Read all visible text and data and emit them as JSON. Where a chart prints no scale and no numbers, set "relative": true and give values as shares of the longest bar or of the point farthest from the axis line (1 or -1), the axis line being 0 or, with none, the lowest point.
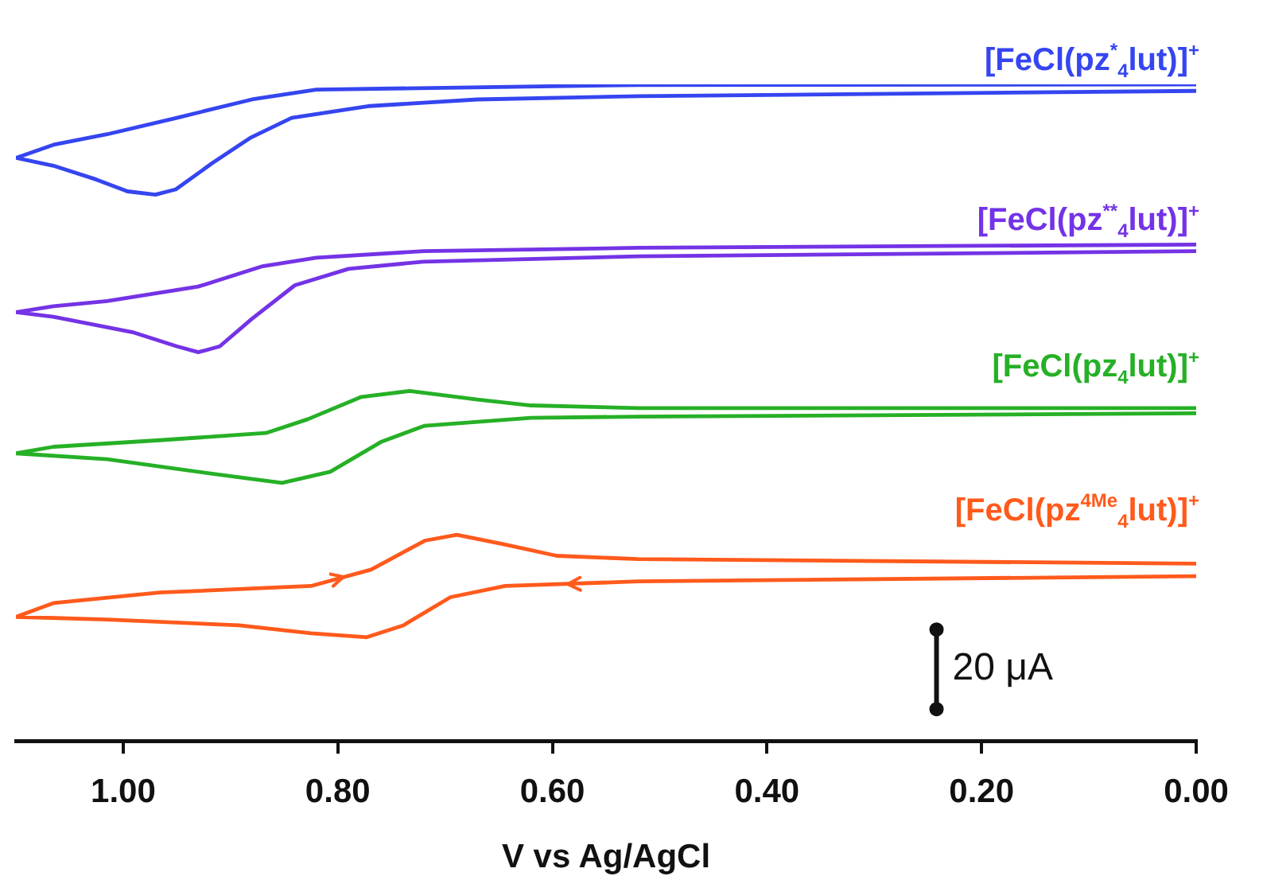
{
  "chart_data": {
    "type": "line",
    "xlabel": "V vs Ag/AgCl",
    "relative": true,
    "xlim": [
      1.1,
      0
    ],
    "xticks": [
      {
        "value": 1.0,
        "label": "1.00"
      },
      {
        "value": 0.8,
        "label": "0.80"
      },
      {
        "value": 0.6,
        "label": "0.60"
      },
      {
        "value": 0.4,
        "label": "0.40"
      },
      {
        "value": 0.2,
        "label": "0.20"
      },
      {
        "value": 0.0,
        "label": "0.00"
      }
    ],
    "grid": false,
    "legend": false,
    "marker": "none",
    "line_style": "solid",
    "annotations": [
      "20 μA"
    ],
    "series": [
      {
        "name": "[FeCl(pz$^{*}$$_{4}$lut)]$^{+}$",
        "color": "#3545f0",
        "x": [
          0,
          0.52,
          0.82,
          0.88,
          0.95,
          1.015,
          1.065,
          1.1,
          1.065,
          1.025,
          0.996,
          0.97,
          0.951,
          0.917,
          0.881,
          0.843,
          0.77,
          0.67,
          0.52,
          0
        ],
        "values": [
          1.0,
          0.999,
          0.992,
          0.977,
          0.949,
          0.924,
          0.908,
          0.888,
          0.876,
          0.855,
          0.837,
          0.832,
          0.84,
          0.88,
          0.919,
          0.949,
          0.967,
          0.977,
          0.982,
          0.99
        ]
      },
      {
        "name": "[FeCl(pz$^{**}$$_{4}$lut)]$^{+}$",
        "color": "#7433e6",
        "x": [
          0,
          0.52,
          0.72,
          0.82,
          0.87,
          0.93,
          1.015,
          1.065,
          1.1,
          1.065,
          0.99,
          0.95,
          0.93,
          0.91,
          0.88,
          0.84,
          0.79,
          0.72,
          0.52,
          0
        ],
        "values": [
          0.756,
          0.751,
          0.746,
          0.736,
          0.723,
          0.692,
          0.67,
          0.662,
          0.653,
          0.646,
          0.622,
          0.601,
          0.592,
          0.601,
          0.643,
          0.694,
          0.719,
          0.73,
          0.738,
          0.746
        ]
      },
      {
        "name": "[FeCl(pz$_{4}$lut)]$^{+}$",
        "color": "#26b026",
        "x": [
          0,
          0.52,
          0.62,
          0.67,
          0.733,
          0.778,
          0.828,
          0.867,
          0.966,
          1.065,
          1.1,
          1.015,
          0.917,
          0.852,
          0.807,
          0.759,
          0.719,
          0.62,
          0.52,
          0
        ],
        "values": [
          0.507,
          0.507,
          0.511,
          0.52,
          0.533,
          0.524,
          0.49,
          0.469,
          0.458,
          0.448,
          0.438,
          0.429,
          0.407,
          0.393,
          0.41,
          0.456,
          0.48,
          0.492,
          0.494,
          0.499
        ]
      },
      {
        "name": "[FeCl(pz$^{4Me}$$_{4}$lut)]$^{+}$",
        "color": "#ff5a1c",
        "x": [
          0,
          0.52,
          0.644,
          0.695,
          0.739,
          0.773,
          0.825,
          0.892,
          1.015,
          1.1,
          1.065,
          0.966,
          0.825,
          0.769,
          0.719,
          0.689,
          0.644,
          0.596,
          0.52,
          0
        ],
        "values": [
          0.251,
          0.243,
          0.236,
          0.219,
          0.176,
          0.158,
          0.164,
          0.176,
          0.185,
          0.189,
          0.21,
          0.226,
          0.236,
          0.261,
          0.305,
          0.314,
          0.299,
          0.282,
          0.277,
          0.27
        ]
      }
    ]
  }
}
